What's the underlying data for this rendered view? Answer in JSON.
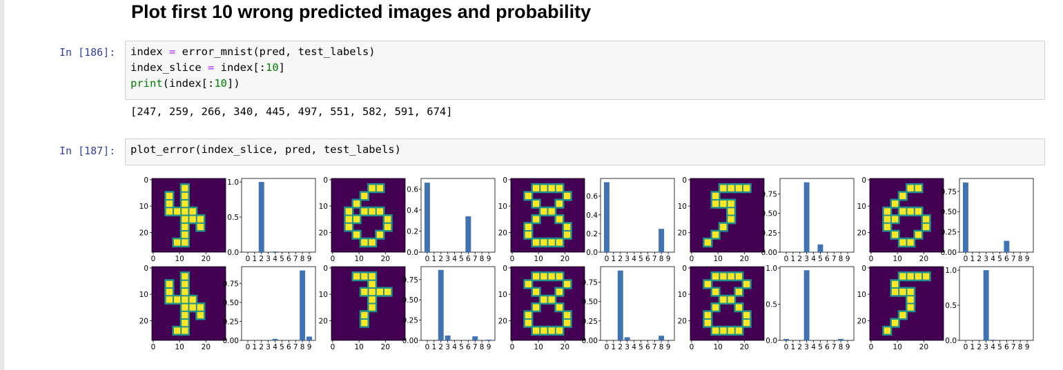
{
  "heading": "Plot first 10 wrong predicted images and probability",
  "cells": [
    {
      "prompt": "In [186]:",
      "lines": [
        [
          {
            "t": "index "
          },
          {
            "t": "=",
            "c": "op"
          },
          {
            "t": " error_mnist(pred, test_labels)"
          }
        ],
        [
          {
            "t": "index_slice "
          },
          {
            "t": "=",
            "c": "op"
          },
          {
            "t": " index[:"
          },
          {
            "t": "10",
            "c": "num"
          },
          {
            "t": "]"
          }
        ],
        [
          {
            "t": "print",
            "c": "builtin"
          },
          {
            "t": "(index[:"
          },
          {
            "t": "10",
            "c": "num"
          },
          {
            "t": "])"
          }
        ]
      ],
      "output": "[247, 259, 266, 340, 445, 497, 551, 582, 591, 674]"
    },
    {
      "prompt": "In [187]:",
      "lines": [
        [
          {
            "t": "plot_error(index_slice, pred, test_labels)"
          }
        ]
      ]
    }
  ],
  "figure": {
    "digit_images": [
      {
        "shows": "4",
        "x_ticks": [
          "0",
          "10",
          "20"
        ],
        "y_ticks": [
          "0",
          "10",
          "20"
        ]
      },
      {
        "shows": "6",
        "x_ticks": [
          "0",
          "10",
          "20"
        ],
        "y_ticks": [
          "0",
          "10",
          "20"
        ]
      },
      {
        "shows": "8",
        "x_ticks": [
          "0",
          "10",
          "20"
        ],
        "y_ticks": [
          "0",
          "10",
          "20"
        ]
      },
      {
        "shows": "5",
        "x_ticks": [
          "0",
          "10",
          "20"
        ],
        "y_ticks": [
          "0",
          "10",
          "20"
        ]
      },
      {
        "shows": "6",
        "x_ticks": [
          "0",
          "10",
          "20"
        ],
        "y_ticks": [
          "0",
          "10",
          "20"
        ]
      },
      {
        "shows": "4",
        "x_ticks": [
          "0",
          "10",
          "20"
        ],
        "y_ticks": [
          "0",
          "10",
          "20"
        ]
      },
      {
        "shows": "7",
        "x_ticks": [
          "0",
          "10",
          "20"
        ],
        "y_ticks": [
          "0",
          "10",
          "20"
        ]
      },
      {
        "shows": "8",
        "x_ticks": [
          "0",
          "10",
          "20"
        ],
        "y_ticks": [
          "0",
          "10",
          "20"
        ]
      },
      {
        "shows": "8",
        "x_ticks": [
          "0",
          "10",
          "20"
        ],
        "y_ticks": [
          "0",
          "10",
          "20"
        ]
      },
      {
        "shows": "5",
        "x_ticks": [
          "0",
          "10",
          "20"
        ],
        "y_ticks": [
          "0",
          "10",
          "20"
        ]
      }
    ],
    "image_colors": {
      "background": "#440154",
      "stroke_mid": "#21918c",
      "stroke_high": "#fde725"
    }
  },
  "chart_data": [
    {
      "type": "bar",
      "categories": [
        "0",
        "1",
        "2",
        "3",
        "4",
        "5",
        "6",
        "7",
        "8",
        "9"
      ],
      "values": [
        0,
        0,
        1.0,
        0,
        0.01,
        0,
        0,
        0,
        0,
        0
      ],
      "y_ticks": [
        {
          "v": 0.0,
          "label": "0.0"
        },
        {
          "v": 0.5,
          "label": "0.5"
        },
        {
          "v": 1.0,
          "label": "1.0"
        }
      ],
      "ylim": [
        0,
        1.05
      ],
      "color": "#3f73b4"
    },
    {
      "type": "bar",
      "categories": [
        "0",
        "1",
        "2",
        "3",
        "4",
        "5",
        "6",
        "7",
        "8",
        "9"
      ],
      "values": [
        0.66,
        0,
        0,
        0,
        0,
        0,
        0.34,
        0,
        0,
        0
      ],
      "y_ticks": [
        {
          "v": 0.0,
          "label": "0.0"
        },
        {
          "v": 0.2,
          "label": "0.2"
        },
        {
          "v": 0.4,
          "label": "0.4"
        },
        {
          "v": 0.6,
          "label": "0.6"
        }
      ],
      "ylim": [
        0,
        0.7
      ],
      "color": "#3f73b4"
    },
    {
      "type": "bar",
      "categories": [
        "0",
        "1",
        "2",
        "3",
        "4",
        "5",
        "6",
        "7",
        "8",
        "9"
      ],
      "values": [
        0.75,
        0,
        0,
        0,
        0,
        0,
        0,
        0,
        0.25,
        0
      ],
      "y_ticks": [
        {
          "v": 0.0,
          "label": "0.0"
        },
        {
          "v": 0.2,
          "label": "0.2"
        },
        {
          "v": 0.4,
          "label": "0.4"
        },
        {
          "v": 0.6,
          "label": "0.6"
        }
      ],
      "ylim": [
        0,
        0.79
      ],
      "color": "#3f73b4"
    },
    {
      "type": "bar",
      "categories": [
        "0",
        "1",
        "2",
        "3",
        "4",
        "5",
        "6",
        "7",
        "8",
        "9"
      ],
      "values": [
        0,
        0,
        0,
        0.9,
        0,
        0.1,
        0,
        0,
        0,
        0
      ],
      "y_ticks": [
        {
          "v": 0.0,
          "label": "0.00"
        },
        {
          "v": 0.25,
          "label": "0.25"
        },
        {
          "v": 0.5,
          "label": "0.50"
        },
        {
          "v": 0.75,
          "label": "0.75"
        }
      ],
      "ylim": [
        0,
        0.95
      ],
      "color": "#3f73b4"
    },
    {
      "type": "bar",
      "categories": [
        "0",
        "1",
        "2",
        "3",
        "4",
        "5",
        "6",
        "7",
        "8",
        "9"
      ],
      "values": [
        0.86,
        0,
        0,
        0,
        0,
        0,
        0.14,
        0,
        0,
        0
      ],
      "y_ticks": [
        {
          "v": 0.0,
          "label": "0.00"
        },
        {
          "v": 0.25,
          "label": "0.25"
        },
        {
          "v": 0.5,
          "label": "0.50"
        },
        {
          "v": 0.75,
          "label": "0.75"
        }
      ],
      "ylim": [
        0,
        0.91
      ],
      "color": "#3f73b4"
    },
    {
      "type": "bar",
      "categories": [
        "0",
        "1",
        "2",
        "3",
        "4",
        "5",
        "6",
        "7",
        "8",
        "9"
      ],
      "values": [
        0,
        0,
        0,
        0,
        0.02,
        0,
        0,
        0,
        0.92,
        0.05
      ],
      "y_ticks": [
        {
          "v": 0.0,
          "label": "0.00"
        },
        {
          "v": 0.25,
          "label": "0.25"
        },
        {
          "v": 0.5,
          "label": "0.50"
        },
        {
          "v": 0.75,
          "label": "0.75"
        }
      ],
      "ylim": [
        0,
        0.97
      ],
      "color": "#3f73b4"
    },
    {
      "type": "bar",
      "categories": [
        "0",
        "1",
        "2",
        "3",
        "4",
        "5",
        "6",
        "7",
        "8",
        "9"
      ],
      "values": [
        0,
        0,
        0.87,
        0.06,
        0,
        0,
        0,
        0.05,
        0,
        0.01
      ],
      "y_ticks": [
        {
          "v": 0.0,
          "label": "0.00"
        },
        {
          "v": 0.25,
          "label": "0.25"
        },
        {
          "v": 0.5,
          "label": "0.50"
        },
        {
          "v": 0.75,
          "label": "0.75"
        }
      ],
      "ylim": [
        0,
        0.91
      ],
      "color": "#3f73b4"
    },
    {
      "type": "bar",
      "categories": [
        "0",
        "1",
        "2",
        "3",
        "4",
        "5",
        "6",
        "7",
        "8",
        "9"
      ],
      "values": [
        0,
        0,
        0.9,
        0.04,
        0,
        0,
        0,
        0,
        0.06,
        0
      ],
      "y_ticks": [
        {
          "v": 0.0,
          "label": "0.00"
        },
        {
          "v": 0.25,
          "label": "0.25"
        },
        {
          "v": 0.5,
          "label": "0.50"
        },
        {
          "v": 0.75,
          "label": "0.75"
        }
      ],
      "ylim": [
        0,
        0.95
      ],
      "color": "#3f73b4"
    },
    {
      "type": "bar",
      "categories": [
        "0",
        "1",
        "2",
        "3",
        "4",
        "5",
        "6",
        "7",
        "8",
        "9"
      ],
      "values": [
        0.02,
        0,
        0,
        0.97,
        0,
        0,
        0,
        0,
        0.02,
        0
      ],
      "y_ticks": [
        {
          "v": 0.0,
          "label": "0.0"
        },
        {
          "v": 0.5,
          "label": "0.5"
        },
        {
          "v": 1.0,
          "label": "1.0"
        }
      ],
      "ylim": [
        0,
        1.02
      ],
      "color": "#3f73b4"
    },
    {
      "type": "bar",
      "categories": [
        "0",
        "1",
        "2",
        "3",
        "4",
        "5",
        "6",
        "7",
        "8",
        "9"
      ],
      "values": [
        0,
        0,
        0,
        1.0,
        0.01,
        0,
        0,
        0,
        0,
        0
      ],
      "y_ticks": [
        {
          "v": 0.0,
          "label": "0.0"
        },
        {
          "v": 0.5,
          "label": "0.5"
        },
        {
          "v": 1.0,
          "label": "1.0"
        }
      ],
      "ylim": [
        0,
        1.05
      ],
      "color": "#3f73b4"
    }
  ]
}
